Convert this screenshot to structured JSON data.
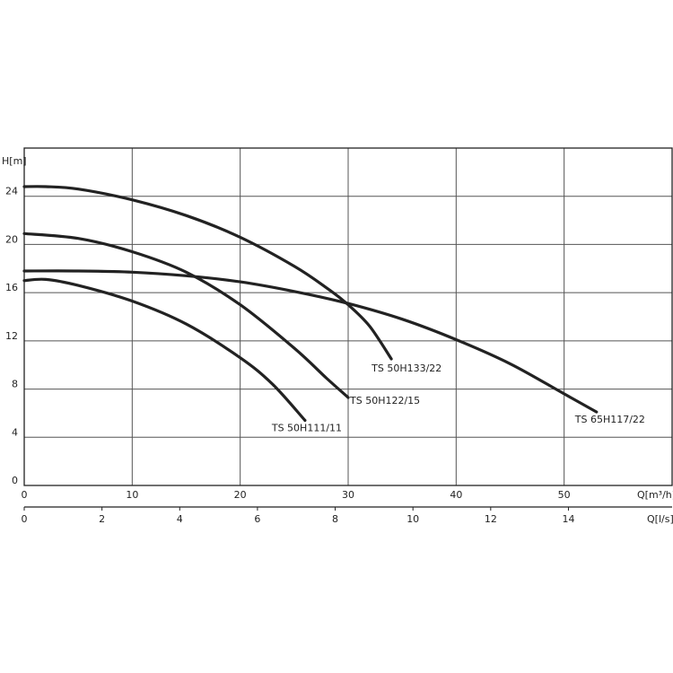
{
  "chart_data": {
    "type": "line",
    "ylabel": "H[m]",
    "xlabel": "Q[m³/h]",
    "x2label": "Q[l/s]",
    "xlim": [
      0,
      60
    ],
    "ylim": [
      0,
      28
    ],
    "x2lim": [
      0,
      16.667
    ],
    "x_ticks": [
      0,
      10,
      20,
      30,
      40,
      50
    ],
    "y_ticks": [
      0,
      4,
      8,
      12,
      16,
      20,
      24
    ],
    "x2_ticks": [
      0,
      2,
      4,
      6,
      8,
      10,
      12,
      14
    ],
    "grid": true,
    "colors": {
      "curve": "#222222",
      "grid": "#555555",
      "frame": "#222222"
    },
    "series": [
      {
        "name": "TS 50H133/22",
        "x": [
          0,
          2,
          5,
          10,
          15,
          20,
          25,
          28,
          30,
          32,
          34
        ],
        "y": [
          24.8,
          24.8,
          24.6,
          23.7,
          22.4,
          20.6,
          18.2,
          16.4,
          15.0,
          13.2,
          10.5
        ]
      },
      {
        "name": "TS 50H122/15",
        "x": [
          0,
          5,
          10,
          15,
          20,
          25,
          28,
          30
        ],
        "y": [
          20.9,
          20.5,
          19.4,
          17.7,
          15.0,
          11.4,
          8.9,
          7.3
        ]
      },
      {
        "name": "TS 50H111/11",
        "x": [
          0,
          2,
          5,
          10,
          15,
          20,
          23,
          26
        ],
        "y": [
          17.0,
          17.1,
          16.6,
          15.3,
          13.4,
          10.6,
          8.4,
          5.4
        ]
      },
      {
        "name": "TS 65H117/22",
        "x": [
          0,
          5,
          10,
          15,
          20,
          25,
          30,
          35,
          40,
          45,
          50,
          53
        ],
        "y": [
          17.8,
          17.8,
          17.7,
          17.4,
          16.9,
          16.1,
          15.1,
          13.8,
          12.1,
          10.1,
          7.6,
          6.1
        ]
      }
    ]
  }
}
